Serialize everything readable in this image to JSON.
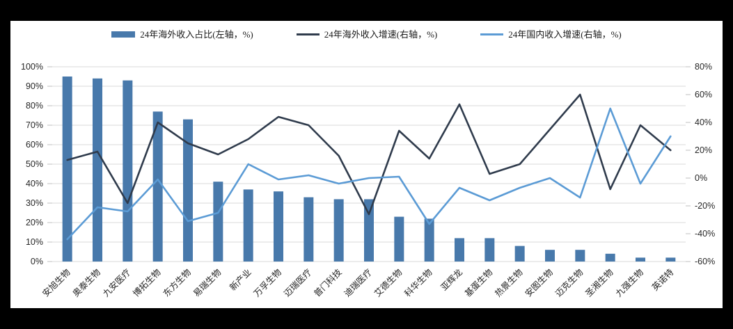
{
  "colors": {
    "frame_bg": "#000000",
    "card_bg": "#ffffff",
    "bar": "#4879AB",
    "overseas_growth_line": "#2F3B4C",
    "domestic_growth_line": "#5B9BD5",
    "gridline": "#D9D9D9",
    "tick": "#BFBFBF",
    "axis_text": "#262626"
  },
  "legend": [
    {
      "label": "24年海外收入占比(左轴，%)",
      "marker": "bar-swatch",
      "color": "#4879AB"
    },
    {
      "label": "24年海外收入增速(右轴，%)",
      "marker": "line-swatch",
      "color": "#2F3B4C"
    },
    {
      "label": "24年国内收入增速(右轴，%)",
      "marker": "line-swatch",
      "color": "#5B9BD5"
    }
  ],
  "chart_data": {
    "type": "bar",
    "title": "",
    "xlabel": "",
    "ylabel": "",
    "legend_position": "top-center",
    "grid": "horizontal",
    "categories": [
      "安旭生物",
      "奥泰生物",
      "九安医疗",
      "博拓生物",
      "东方生物",
      "易瑞生物",
      "新产业",
      "万孚生物",
      "迈瑞医疗",
      "普门科技",
      "迪瑞医疗",
      "艾德生物",
      "科华生物",
      "亚辉龙",
      "基蛋生物",
      "热景生物",
      "安图生物",
      "迈克生物",
      "圣湘生物",
      "九强生物",
      "英诺特"
    ],
    "series": [
      {
        "name": "24年海外收入占比(左轴，%)",
        "type": "bar",
        "axis": "left",
        "color": "#4879AB",
        "values": [
          95,
          94,
          93,
          77,
          73,
          41,
          37,
          36,
          33,
          32,
          32,
          23,
          22,
          12,
          12,
          8,
          6,
          6,
          4,
          2,
          2
        ]
      },
      {
        "name": "24年海外收入增速(右轴，%)",
        "type": "line",
        "axis": "right",
        "color": "#2F3B4C",
        "values": [
          13,
          19,
          -18,
          40,
          25,
          17,
          28,
          44,
          38,
          16,
          -26,
          34,
          14,
          53,
          3,
          10,
          35,
          60,
          -8,
          38,
          20
        ]
      },
      {
        "name": "24年国内收入增速(右轴，%)",
        "type": "line",
        "axis": "right",
        "color": "#5B9BD5",
        "values": [
          -44,
          -21,
          -24,
          -1,
          -31,
          -25,
          10,
          -1,
          2,
          -4,
          0,
          1,
          -33,
          -7,
          -16,
          -7,
          0,
          -14,
          50,
          -4,
          30
        ]
      }
    ],
    "left_axis": {
      "min": 0,
      "max": 100,
      "step": 10,
      "labels": [
        "0%",
        "10%",
        "20%",
        "30%",
        "40%",
        "50%",
        "60%",
        "70%",
        "80%",
        "90%",
        "100%"
      ]
    },
    "right_axis": {
      "min": -60,
      "max": 80,
      "step": 20,
      "labels": [
        "-60%",
        "-40%",
        "-20%",
        "0%",
        "20%",
        "40%",
        "60%",
        "80%"
      ]
    }
  }
}
